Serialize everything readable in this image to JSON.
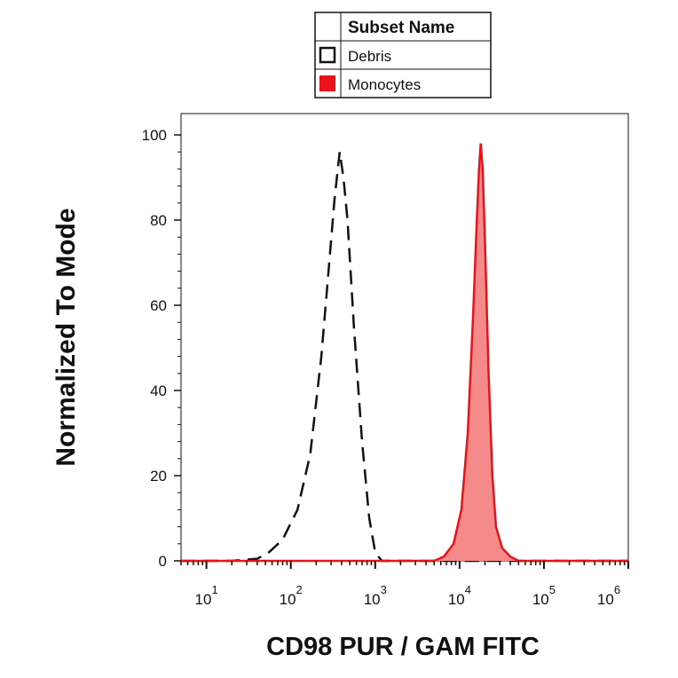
{
  "chart_data": {
    "type": "area",
    "title": "",
    "xlabel": "CD98 PUR / GAM FITC",
    "ylabel": "Normalized To Mode",
    "x_scale": "log",
    "xlim": [
      5,
      1000000
    ],
    "ylim": [
      0,
      105
    ],
    "y_ticks": [
      0,
      20,
      40,
      60,
      80,
      100
    ],
    "x_ticks": [
      {
        "value": 10,
        "base": "10",
        "exp": "1"
      },
      {
        "value": 100,
        "base": "10",
        "exp": "2"
      },
      {
        "value": 1000,
        "base": "10",
        "exp": "3"
      },
      {
        "value": 10000,
        "base": "10",
        "exp": "4"
      },
      {
        "value": 100000,
        "base": "10",
        "exp": "5"
      },
      {
        "value": 1000000,
        "base": "10",
        "exp": "6"
      }
    ],
    "legend": {
      "title": "Subset Name",
      "placement": "top-center",
      "entries": [
        {
          "name": "Debris",
          "swatch": "open-square"
        },
        {
          "name": "Monocytes",
          "swatch": "filled-red"
        }
      ]
    },
    "series": [
      {
        "name": "Debris",
        "style": "dashed",
        "color": "#111111",
        "points": [
          [
            5,
            0
          ],
          [
            20,
            0
          ],
          [
            40,
            0.5
          ],
          [
            55,
            2
          ],
          [
            80,
            5
          ],
          [
            120,
            12
          ],
          [
            170,
            25
          ],
          [
            230,
            48
          ],
          [
            280,
            68
          ],
          [
            330,
            85
          ],
          [
            380,
            96
          ],
          [
            420,
            90
          ],
          [
            470,
            80
          ],
          [
            560,
            55
          ],
          [
            700,
            28
          ],
          [
            850,
            10
          ],
          [
            1000,
            2
          ],
          [
            1200,
            0
          ],
          [
            1000000,
            0
          ]
        ]
      },
      {
        "name": "Monocytes",
        "style": "filled",
        "color": "#e8141a",
        "fill": "#f48a8a",
        "points": [
          [
            5,
            0
          ],
          [
            5000,
            0
          ],
          [
            6500,
            1
          ],
          [
            8500,
            4
          ],
          [
            10500,
            12
          ],
          [
            12500,
            30
          ],
          [
            14500,
            58
          ],
          [
            16000,
            80
          ],
          [
            17000,
            92
          ],
          [
            17800,
            98
          ],
          [
            18800,
            92
          ],
          [
            20000,
            75
          ],
          [
            22000,
            45
          ],
          [
            24500,
            20
          ],
          [
            27000,
            8
          ],
          [
            32000,
            3
          ],
          [
            40000,
            1
          ],
          [
            50000,
            0
          ],
          [
            1000000,
            0
          ]
        ]
      }
    ]
  }
}
